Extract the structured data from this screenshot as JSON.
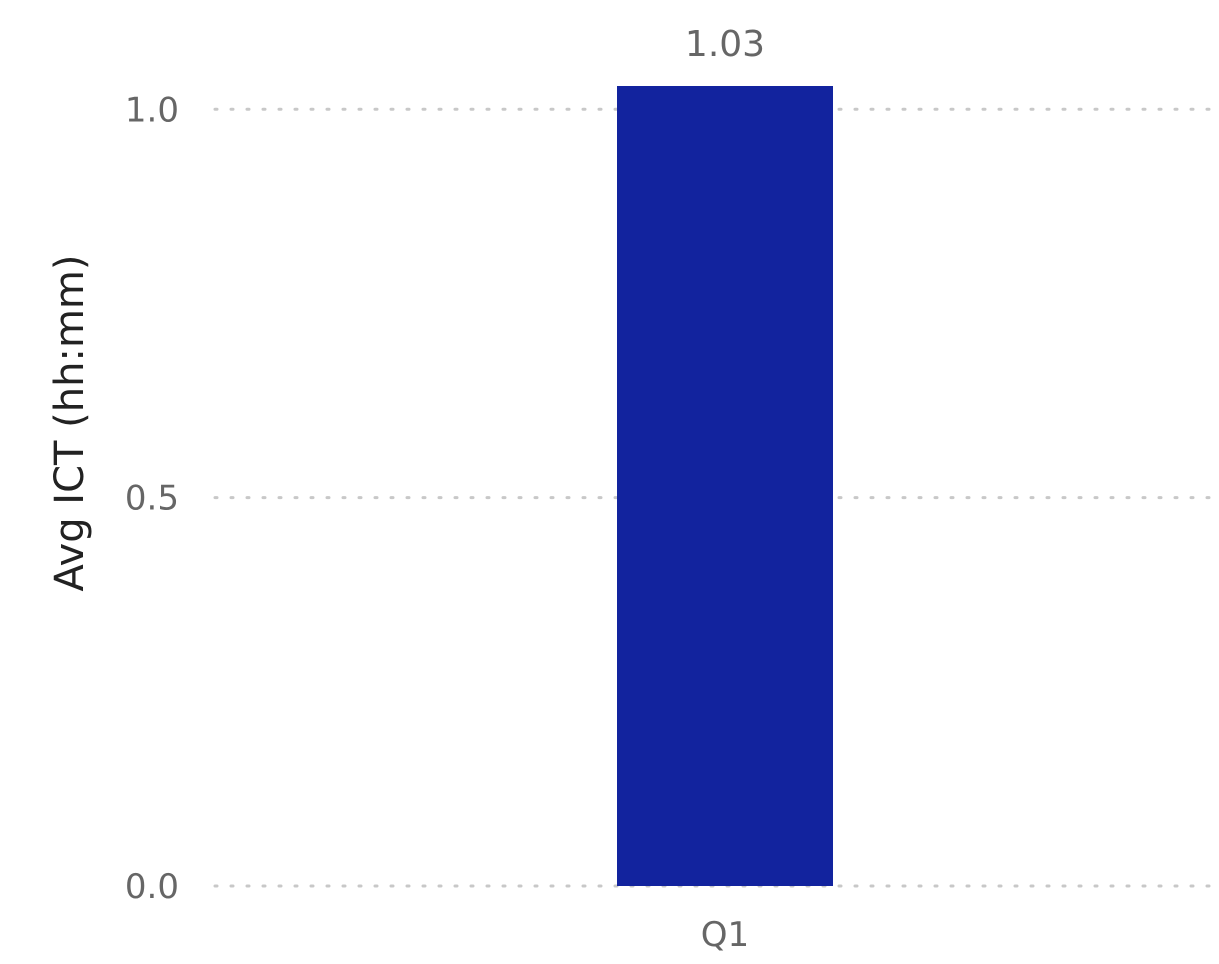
{
  "chart_data": {
    "type": "bar",
    "categories": [
      "Q1"
    ],
    "values": [
      1.03
    ],
    "data_labels": [
      "1.03"
    ],
    "title": "",
    "xlabel": "",
    "ylabel": "Avg ICT (hh:mm)",
    "ylim": [
      0,
      1.03
    ],
    "yticks": [
      0.0,
      0.5,
      1.0
    ],
    "ytick_labels": [
      "0.0",
      "0.5",
      "1.0"
    ],
    "grid": "horizontal-dotted",
    "legend": "none",
    "colors": {
      "bar": "#12239E",
      "tick_text": "#666666",
      "axis_title": "#222222",
      "grid": "#C8C8C8"
    }
  }
}
